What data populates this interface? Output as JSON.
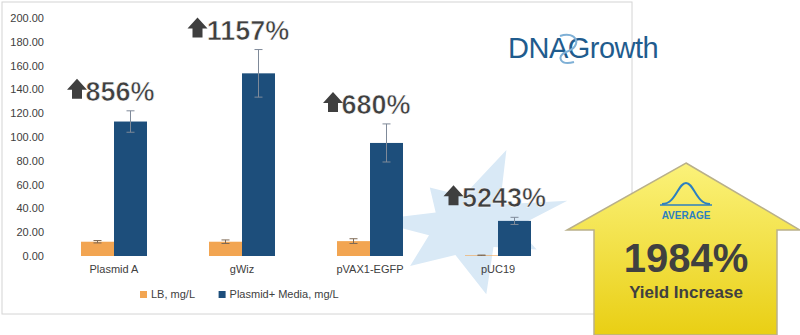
{
  "chart_data": {
    "type": "bar",
    "categories": [
      "Plasmid A",
      "gWiz",
      "pVAX1-EGFP",
      "pUC19"
    ],
    "series": [
      {
        "name": "LB, mg/L",
        "color": "#f2a552",
        "values": [
          12,
          12,
          12.5,
          0.5
        ],
        "errors": [
          1,
          1.5,
          2,
          0.3
        ]
      },
      {
        "name": "Plasmid+ Media, mg/L",
        "color": "#1d4e7b",
        "values": [
          113,
          153.5,
          95,
          29.5
        ],
        "errors": [
          9,
          20,
          16,
          3
        ]
      }
    ],
    "ylim": [
      0,
      200
    ],
    "yticks": [
      {
        "value": 0,
        "label": "0.00"
      },
      {
        "value": 20,
        "label": "20.00"
      },
      {
        "value": 40,
        "label": "40.00"
      },
      {
        "value": 60,
        "label": "60.00"
      },
      {
        "value": 80,
        "label": "80.00"
      },
      {
        "value": 100,
        "label": "100.00"
      },
      {
        "value": 120,
        "label": "120.00"
      },
      {
        "value": 140,
        "label": "140.00"
      },
      {
        "value": 160,
        "label": "160.00"
      },
      {
        "value": 180,
        "label": "180.00"
      },
      {
        "value": 200,
        "label": "200.00"
      }
    ],
    "grid": false,
    "legend": "bottom",
    "annotations": [
      "856%",
      "1157%",
      "680%",
      "5243%"
    ],
    "logo": "DNAGrowth",
    "average_label": "AVERAGE",
    "average_value": "1984%",
    "average_caption": "Yield Increase"
  }
}
